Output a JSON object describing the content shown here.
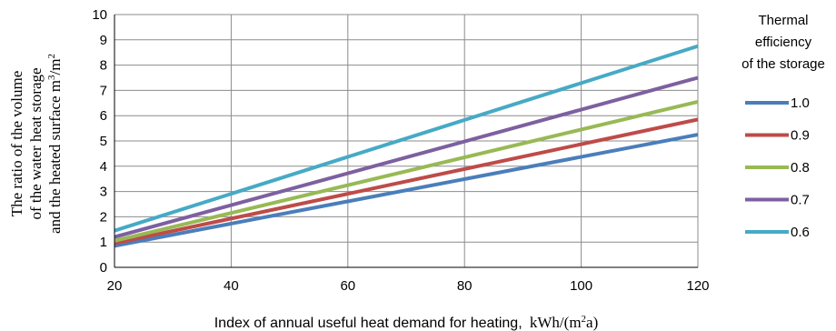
{
  "chart_data": {
    "type": "line",
    "title": "",
    "xlabel": {
      "main": "Index of annual useful heat demand for heating,",
      "unit": "kWh/(m",
      "unit_sup": "2",
      "unit_end": "a)"
    },
    "ylabel": {
      "line1": "The ratio of the volume",
      "line2": "of the water heat storage",
      "line3": "and the heated surface m",
      "line3_sup1": "3",
      "line3_mid": "/m",
      "line3_sup2": "2"
    },
    "xlim": [
      20,
      120
    ],
    "ylim": [
      0,
      10
    ],
    "xticks": [
      "20",
      "40",
      "60",
      "80",
      "100",
      "120"
    ],
    "yticks": [
      "0",
      "1",
      "2",
      "3",
      "4",
      "5",
      "6",
      "7",
      "8",
      "9",
      "10"
    ],
    "grid": true,
    "legend": {
      "placement": "right",
      "title": [
        "Thermal",
        "efficiency",
        "of the storage"
      ]
    },
    "x": [
      20,
      120
    ],
    "series": [
      {
        "name": "1.0",
        "color": "#4a7ebb",
        "values": [
          0.85,
          5.25
        ]
      },
      {
        "name": "0.9",
        "color": "#be4b48",
        "values": [
          0.95,
          5.85
        ]
      },
      {
        "name": "0.8",
        "color": "#98b954",
        "values": [
          1.05,
          6.55
        ]
      },
      {
        "name": "0.7",
        "color": "#7d60a0",
        "values": [
          1.2,
          7.5
        ]
      },
      {
        "name": "0.6",
        "color": "#46aac5",
        "values": [
          1.45,
          8.75
        ]
      }
    ]
  }
}
